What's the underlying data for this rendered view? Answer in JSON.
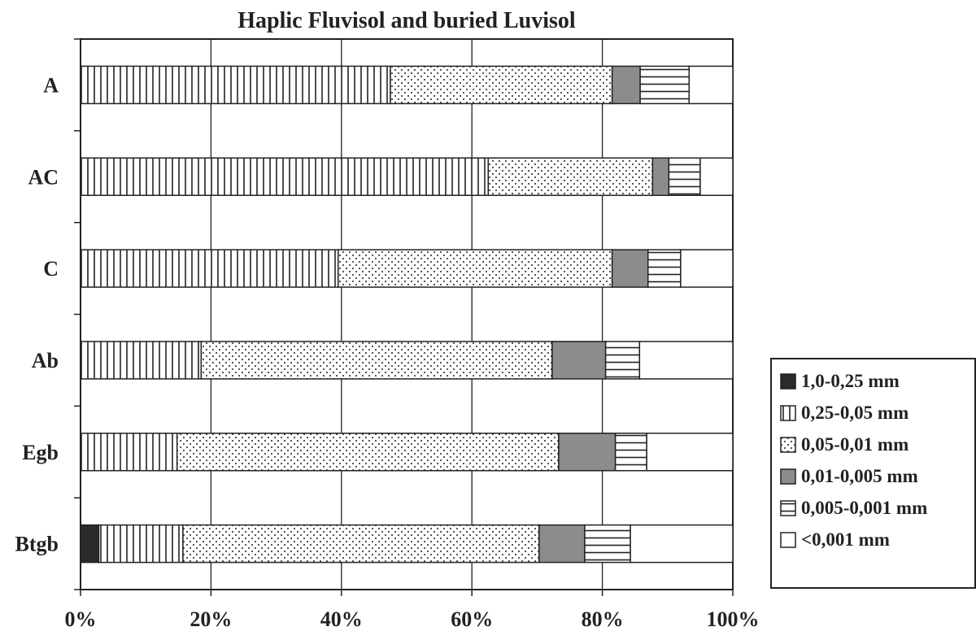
{
  "chart_data": {
    "type": "bar",
    "orientation": "horizontal",
    "stacked": "percent",
    "title": "Haplic Fluvisol and buried Luvisol",
    "categories": [
      "A",
      "AC",
      "C",
      "Ab",
      "Egb",
      "Btgb"
    ],
    "x_ticks": [
      "0%",
      "20%",
      "40%",
      "60%",
      "80%",
      "100%"
    ],
    "xlim": [
      0,
      100
    ],
    "grid": "vertical",
    "legend_position": "right",
    "series": [
      {
        "name": "1,0-0,25 mm",
        "pattern": "solid-dark",
        "values": [
          0,
          0,
          0,
          0,
          0,
          2.8
        ]
      },
      {
        "name": "0,25-0,05 mm",
        "pattern": "vertical-lines",
        "values": [
          47.5,
          62.5,
          39.5,
          18.5,
          14.8,
          12.9
        ]
      },
      {
        "name": "0,05-0,01 mm",
        "pattern": "dots",
        "values": [
          34.0,
          25.2,
          42.0,
          53.8,
          58.5,
          54.6
        ]
      },
      {
        "name": "0,01-0,005 mm",
        "pattern": "solid-gray",
        "values": [
          4.3,
          2.5,
          5.5,
          8.2,
          8.7,
          7.0
        ]
      },
      {
        "name": "0,005-0,001 mm",
        "pattern": "horizontal-lines",
        "values": [
          7.5,
          4.8,
          5.0,
          5.2,
          4.8,
          7.0
        ]
      },
      {
        "name": "<0,001 mm",
        "pattern": "empty",
        "values": [
          6.7,
          5.0,
          8.0,
          14.3,
          13.2,
          15.7
        ]
      }
    ],
    "colors": {
      "dark": "#2b2b2b",
      "gray": "#8c8c8c",
      "line": "#222222",
      "fill": "#ffffff"
    }
  }
}
